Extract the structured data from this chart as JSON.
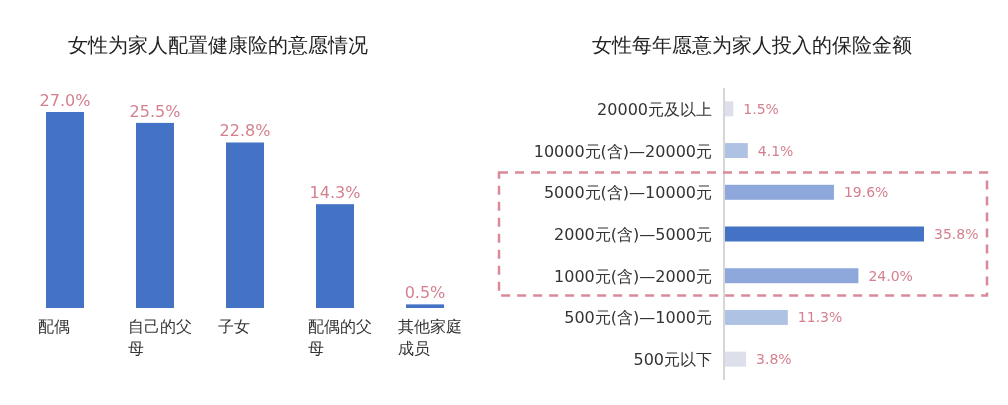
{
  "chart_data": [
    {
      "type": "bar",
      "title": "女性为家人配置健康险的意愿情况",
      "categories": [
        "配偶",
        "自己的父母",
        "子女",
        "配偶的父母",
        "其他家庭成员"
      ],
      "color": "#4472c4",
      "values": [
        27.0,
        25.5,
        22.8,
        14.3,
        0.5
      ],
      "value_labels": [
        "27.0%",
        "25.5%",
        "22.8%",
        "14.3%",
        "0.5%"
      ]
    },
    {
      "type": "bar",
      "orientation": "horizontal",
      "title": "女性每年愿意为家人投入的保险金额",
      "categories": [
        "20000元及以上",
        "10000元(含)—20000元",
        "5000元(含)—10000元",
        "2000元(含)—5000元",
        "1000元(含)—2000元",
        "500元(含)—1000元",
        "500元以下"
      ],
      "colors": [
        "#dde0ea",
        "#aec2e4",
        "#8fa8dc",
        "#4472c4",
        "#8fa8dc",
        "#aec2e4",
        "#dde0ea"
      ],
      "values": [
        1.5,
        4.1,
        19.6,
        35.8,
        24.0,
        11.3,
        3.8
      ],
      "value_labels": [
        "1.5%",
        "4.1%",
        "19.6%",
        "35.8%",
        "24.0%",
        "11.3%",
        "3.8%"
      ]
    }
  ]
}
